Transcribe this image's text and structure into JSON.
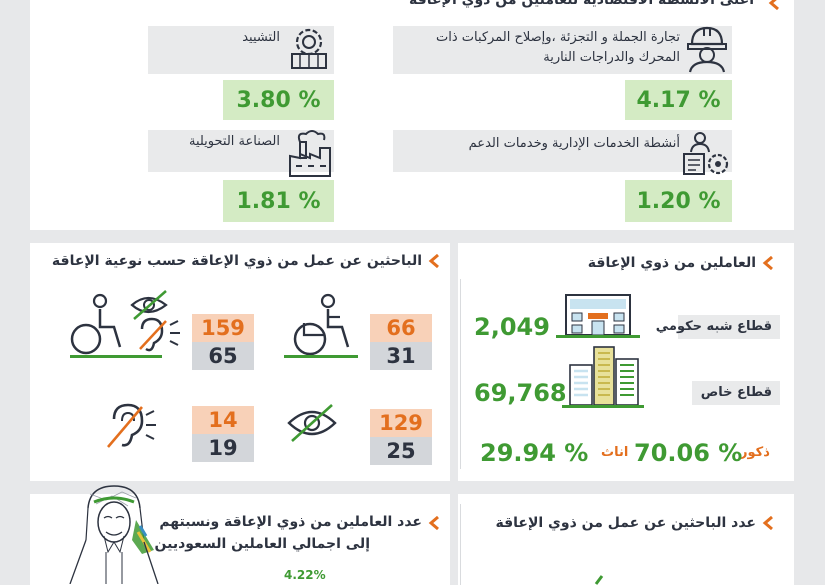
{
  "top_section": {
    "title": "أعلى الأنشطة الاقتصادية للعاملين من ذوي الإعاقة",
    "items": [
      {
        "label": "تجارة الجملة و التجزئة ،وإصلاح المركبات ذات المحرك والدراجات النارية",
        "value": "4.17 %",
        "icon": "construction-worker-icon"
      },
      {
        "label": "التشييد",
        "value": "3.80 %",
        "icon": "gear-building-icon"
      },
      {
        "label": "أنشطة الخدمات الإدارية وخدمات الدعم",
        "value": "1.20 %",
        "icon": "admin-services-icon"
      },
      {
        "label": "الصناعة التحويلية",
        "value": "1.81 %",
        "icon": "factory-icon"
      }
    ]
  },
  "job_seekers_by_type": {
    "title": "الباحثين عن عمل من ذوي الإعاقة حسب نوعية الإعاقة",
    "groups": [
      {
        "icon": "wheelchair-icon",
        "orange": "66",
        "grey": "31"
      },
      {
        "icon": "multiple-disability-icon",
        "orange": "159",
        "grey": "65"
      },
      {
        "icon": "visual-impairment-icon",
        "orange": "129",
        "grey": "25"
      },
      {
        "icon": "hearing-impairment-icon",
        "orange": "14",
        "grey": "19"
      }
    ]
  },
  "workers": {
    "title": "العاملين من ذوي الإعاقة",
    "semi_gov_label": "قطاع شبه حكومي",
    "semi_gov_value": "2,049",
    "private_label": "قطاع خاص",
    "private_value": "69,768",
    "male_label": "ذكور",
    "male_value": "70.06 %",
    "female_label": "اناث",
    "female_value": "29.94 %"
  },
  "bottom": {
    "right_title": "عدد الباحثين عن عمل من ذوي الإعاقة",
    "left_title_line1": "عدد العاملين من ذوي الإعاقة ونسبتهم",
    "left_title_line2": "إلى اجمالي العاملين السعوديين",
    "left_percent": "4.22%"
  },
  "colors": {
    "accent_orange": "#e36f1e",
    "green": "#3f9a33",
    "light_green": "#d4ebc4",
    "orange_box": "#f8d1b8"
  }
}
